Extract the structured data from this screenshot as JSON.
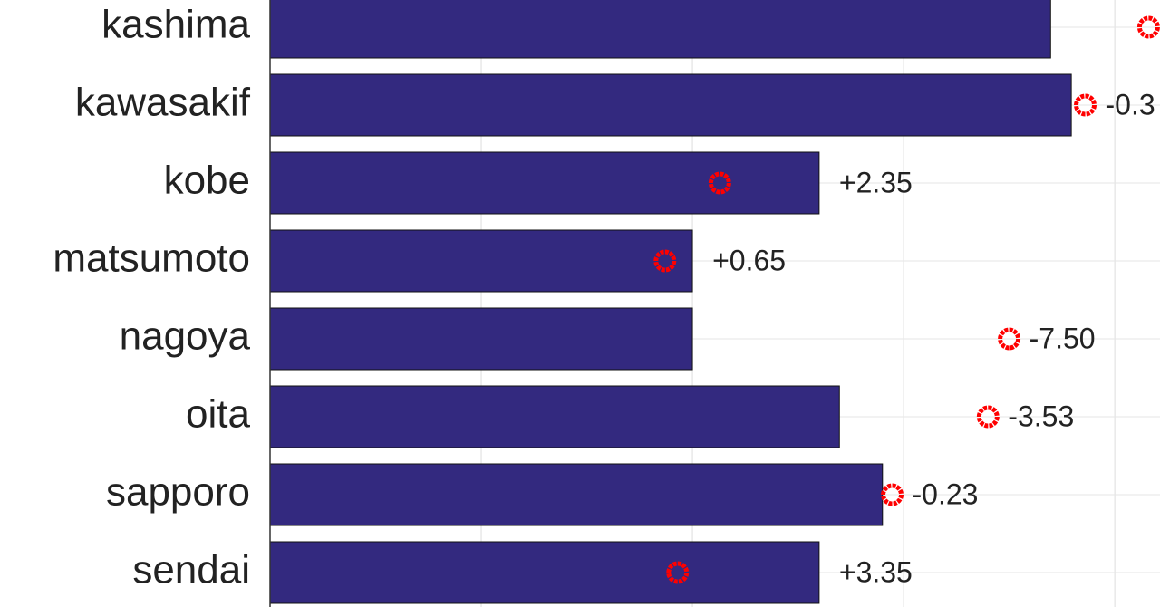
{
  "chart_data": {
    "type": "bar",
    "orientation": "horizontal",
    "categories": [
      "kashima",
      "kawasakif",
      "kobe",
      "matsumoto",
      "nagoya",
      "oita",
      "sapporo",
      "sendai"
    ],
    "series": [
      {
        "color": "#33297f",
        "values": [
          18.48,
          18.97,
          13.0,
          10.0,
          10.0,
          13.48,
          14.5,
          13.0
        ]
      },
      {
        "color": "#ff0000",
        "marker": "circle",
        "values": [
          20.8,
          19.3,
          10.65,
          9.35,
          17.5,
          17.0,
          14.73,
          9.65
        ],
        "value_labels": [
          null,
          "-0.3",
          "+2.35",
          "+0.65",
          "-7.50",
          "-3.53",
          "-0.23",
          "+3.35"
        ]
      }
    ],
    "xlim": [
      0,
      21.07
    ],
    "gridlines": [
      0,
      5,
      10,
      15,
      20
    ],
    "grid": true
  }
}
